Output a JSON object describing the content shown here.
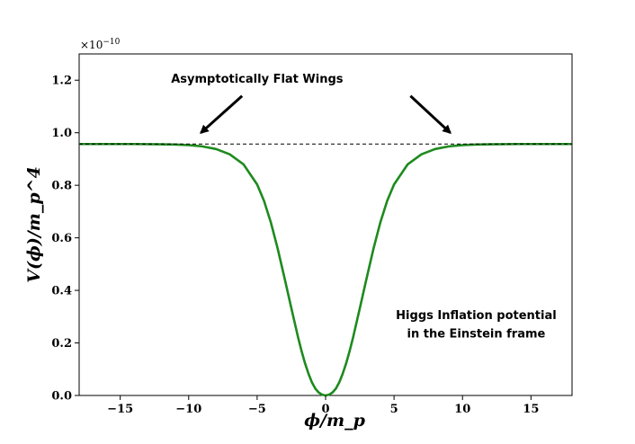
{
  "chart_data": {
    "type": "line",
    "title": "",
    "xlabel": "ϕ/m_p",
    "ylabel": "V(ϕ)/m_p^4",
    "scale_label": "×10",
    "scale_exponent": "−10",
    "xlim": [
      -18,
      18
    ],
    "ylim": [
      0,
      1.3
    ],
    "xticks": [
      -15,
      -10,
      -5,
      0,
      5,
      10,
      15
    ],
    "xtick_labels": [
      "−15",
      "−10",
      "−5",
      "0",
      "5",
      "10",
      "15"
    ],
    "yticks": [
      0.0,
      0.2,
      0.4,
      0.6,
      0.8,
      1.0,
      1.2
    ],
    "ytick_labels": [
      "0.0",
      "0.2",
      "0.4",
      "0.6",
      "0.8",
      "1.0",
      "1.2"
    ],
    "grid": false,
    "series": [
      {
        "color": "#1e8a1e",
        "style": "solid",
        "x": [
          -18,
          -16,
          -14,
          -12,
          -11,
          -10,
          -9,
          -8,
          -7,
          -6,
          -5,
          -4.5,
          -4,
          -3.5,
          -3,
          -2.5,
          -2,
          -1.75,
          -1.5,
          -1.25,
          -1,
          -0.75,
          -0.5,
          -0.25,
          0,
          0.25,
          0.5,
          0.75,
          1,
          1.25,
          1.5,
          1.75,
          2,
          2.5,
          3,
          3.5,
          4,
          4.5,
          5,
          6,
          7,
          8,
          9,
          10,
          11,
          12,
          14,
          16,
          18
        ],
        "y": [
          0.957,
          0.957,
          0.957,
          0.956,
          0.955,
          0.953,
          0.948,
          0.938,
          0.918,
          0.88,
          0.803,
          0.741,
          0.659,
          0.559,
          0.447,
          0.332,
          0.219,
          0.168,
          0.122,
          0.083,
          0.05,
          0.026,
          0.011,
          0.003,
          0.0,
          0.003,
          0.011,
          0.026,
          0.05,
          0.083,
          0.122,
          0.168,
          0.219,
          0.332,
          0.447,
          0.559,
          0.659,
          0.741,
          0.803,
          0.88,
          0.918,
          0.938,
          0.948,
          0.953,
          0.955,
          0.956,
          0.957,
          0.957,
          0.957
        ]
      },
      {
        "color": "#000000",
        "style": "dashed",
        "x": [
          -18,
          18
        ],
        "y": [
          0.957,
          0.957
        ]
      }
    ],
    "annotations": [
      {
        "text": "Asymptotically Flat Wings",
        "x": -5.0,
        "y": 1.19
      },
      {
        "text": "Higgs Inflation potential",
        "x": 11.0,
        "y": 0.29
      },
      {
        "text": "in the Einstein frame",
        "x": 11.0,
        "y": 0.22
      }
    ],
    "arrows": [
      {
        "from": [
          -6.1,
          1.14
        ],
        "to": [
          -9.1,
          1.0
        ]
      },
      {
        "from": [
          6.2,
          1.14
        ],
        "to": [
          9.1,
          1.0
        ]
      }
    ]
  }
}
